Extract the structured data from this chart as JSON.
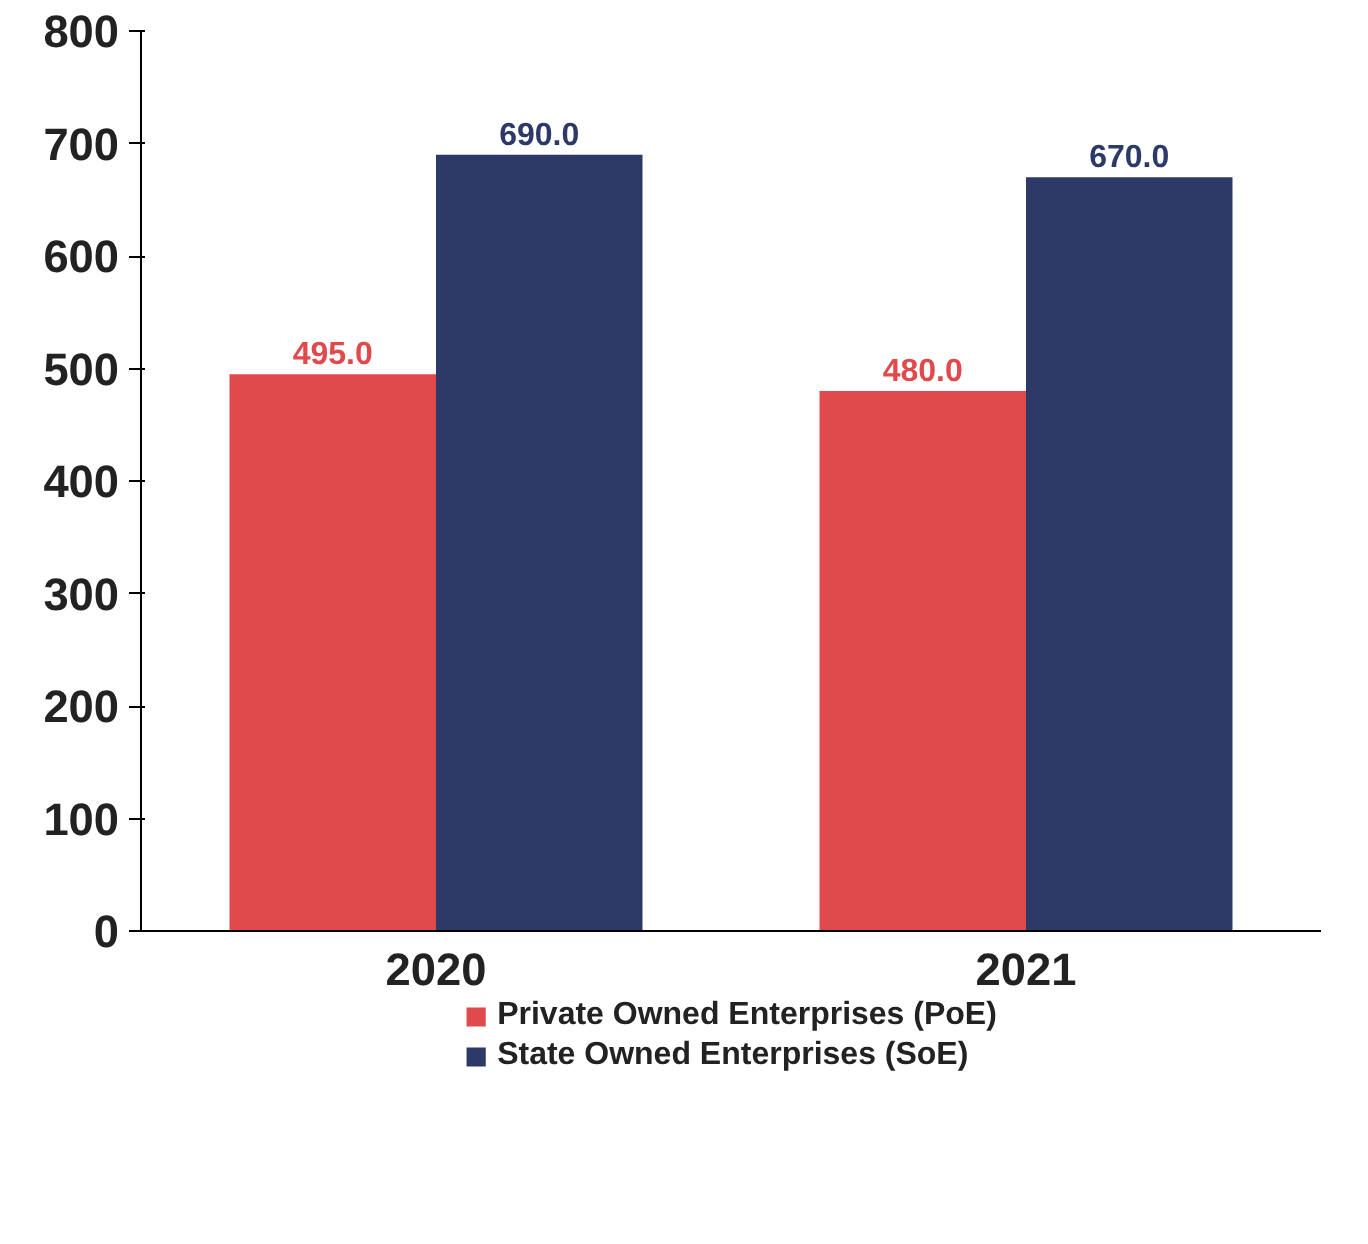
{
  "chart_data": {
    "type": "bar",
    "categories": [
      "2020",
      "2021"
    ],
    "series": [
      {
        "name": "Private Owned Enterprises (PoE)",
        "color": "#e04a4c",
        "values": [
          495.0,
          480.0
        ],
        "value_labels": [
          "495.0",
          "480.0"
        ]
      },
      {
        "name": "State Owned Enterprises (SoE)",
        "color": "#2d3a68",
        "values": [
          690.0,
          670.0
        ],
        "value_labels": [
          "690.0",
          "670.0"
        ]
      }
    ],
    "ylim": [
      0,
      800
    ],
    "yticks": [
      0,
      100,
      200,
      300,
      400,
      500,
      600,
      700,
      800
    ],
    "legend": "bottom",
    "grid": false
  }
}
